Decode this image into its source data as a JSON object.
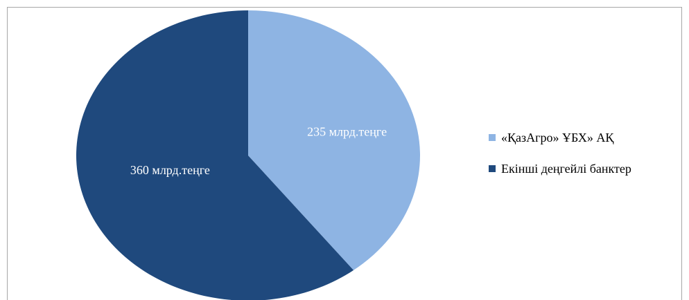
{
  "chart_data": {
    "type": "pie",
    "categories": [
      "«ҚазАгро» ҰБХ» АҚ",
      "Екінші деңгейлі банктер"
    ],
    "values": [
      235,
      360
    ],
    "data_labels": [
      "235 млрд.теңге",
      "360 млрд.теңге"
    ],
    "colors": [
      "#8eb4e3",
      "#1f497d"
    ],
    "legend_position": "right",
    "start": "top, clockwise"
  }
}
